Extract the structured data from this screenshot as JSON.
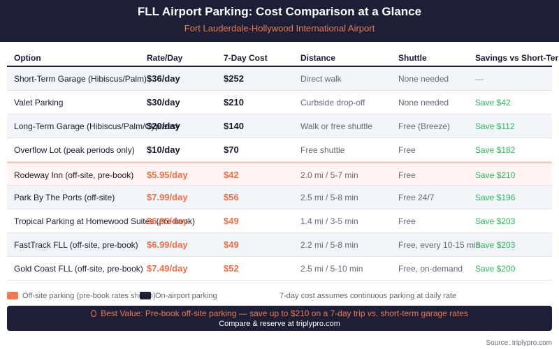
{
  "header": {
    "title": "FLL Airport Parking: Cost Comparison at a Glance",
    "subtitle": "Fort Lauderdale-Hollywood International Airport"
  },
  "table": {
    "columns": [
      "Option",
      "Rate/Day",
      "7-Day Cost",
      "Distance",
      "Shuttle",
      "Savings vs Short-Term"
    ],
    "rows": [
      {
        "option": "Short-Term Garage (Hibiscus/Palm)",
        "rate": "$36/day",
        "cost": "$252",
        "distance": "Direct walk",
        "shuttle": "None needed",
        "savings": "—",
        "offsite": false
      },
      {
        "option": "Valet Parking",
        "rate": "$30/day",
        "cost": "$210",
        "distance": "Curbside drop-off",
        "shuttle": "None needed",
        "savings": "Save $42",
        "offsite": false
      },
      {
        "option": "Long-Term Garage (Hibiscus/Palm/Cypress)",
        "rate": "$20/day",
        "cost": "$140",
        "distance": "Walk or free shuttle",
        "shuttle": "Free (Breeze)",
        "savings": "Save $112",
        "offsite": false
      },
      {
        "option": "Overflow Lot (peak periods only)",
        "rate": "$10/day",
        "cost": "$70",
        "distance": "Free shuttle",
        "shuttle": "Free",
        "savings": "Save $182",
        "offsite": false
      },
      {
        "option": "Rodeway Inn (off-site, pre-book)",
        "rate": "$5.95/day",
        "cost": "$42",
        "distance": "2.0 mi / 5-7 min",
        "shuttle": "Free",
        "savings": "Save $210",
        "offsite": true
      },
      {
        "option": "Park By The Ports (off-site)",
        "rate": "$7.99/day",
        "cost": "$56",
        "distance": "2.5 mi / 5-8 min",
        "shuttle": "Free 24/7",
        "savings": "Save $196",
        "offsite": true
      },
      {
        "option": "Tropical Parking at Homewood Suites (pre-book)",
        "rate": "$6.95/day",
        "cost": "$49",
        "distance": "1.4 mi / 3-5 min",
        "shuttle": "Free",
        "savings": "Save $203",
        "offsite": true
      },
      {
        "option": "FastTrack FLL (off-site, pre-book)",
        "rate": "$6.99/day",
        "cost": "$49",
        "distance": "2.2 mi / 5-8 min",
        "shuttle": "Free, every 10-15 min",
        "savings": "Save $203",
        "offsite": true
      },
      {
        "option": "Gold Coast FLL (off-site, pre-book)",
        "rate": "$7.49/day",
        "cost": "$52",
        "distance": "2.5 mi / 5-10 min",
        "shuttle": "Free, on-demand",
        "savings": "Save $200",
        "offsite": true
      }
    ]
  },
  "legend": {
    "offsite_label": "Off-site parking (pre-book rates shown)",
    "onairport_label": "On-airport parking",
    "note": "7-day cost assumes continuous parking at daily rate",
    "offsite_color": "#f07a55",
    "onairport_color": "#1c1f35"
  },
  "banner": {
    "icon": "map-pin-icon",
    "headline": "Best Value: Pre-book off-site parking — save up to $210 on a 7-day trip vs. short-term garage rates",
    "cta": "Compare & reserve at triplypro.com"
  },
  "source": "Source: triplypro.com",
  "colors": {
    "navy": "#1c1f35",
    "accent": "#f07a55",
    "savings_green": "#2eb85c"
  }
}
